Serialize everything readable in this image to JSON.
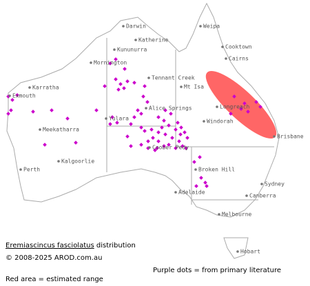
{
  "map": {
    "places": [
      "Darwin",
      "Weipa",
      "Katherine",
      "Cooktown",
      "Kununurra",
      "Cairns",
      "Mornington",
      "Tennant Creek",
      "Mt Isa",
      "Karratha",
      "Exmouth",
      "Longreach",
      "Alice Springs",
      "Windorah",
      "Yulara",
      "Meekatharra",
      "Coober Pedy",
      "Brisbane",
      "Broken Hill",
      "Perth",
      "Kalgoorlie",
      "Sydney",
      "Adelaide",
      "Canberra",
      "Melbourne",
      "Hobart"
    ]
  },
  "caption": {
    "species": "Eremiascincus fasciolatus",
    "suffix": "distribution",
    "copyright": "© 2008-2025 AROD.com.au",
    "dots_note": "Purple dots = from primary literature",
    "area_note": "Red area = estimated range"
  }
}
